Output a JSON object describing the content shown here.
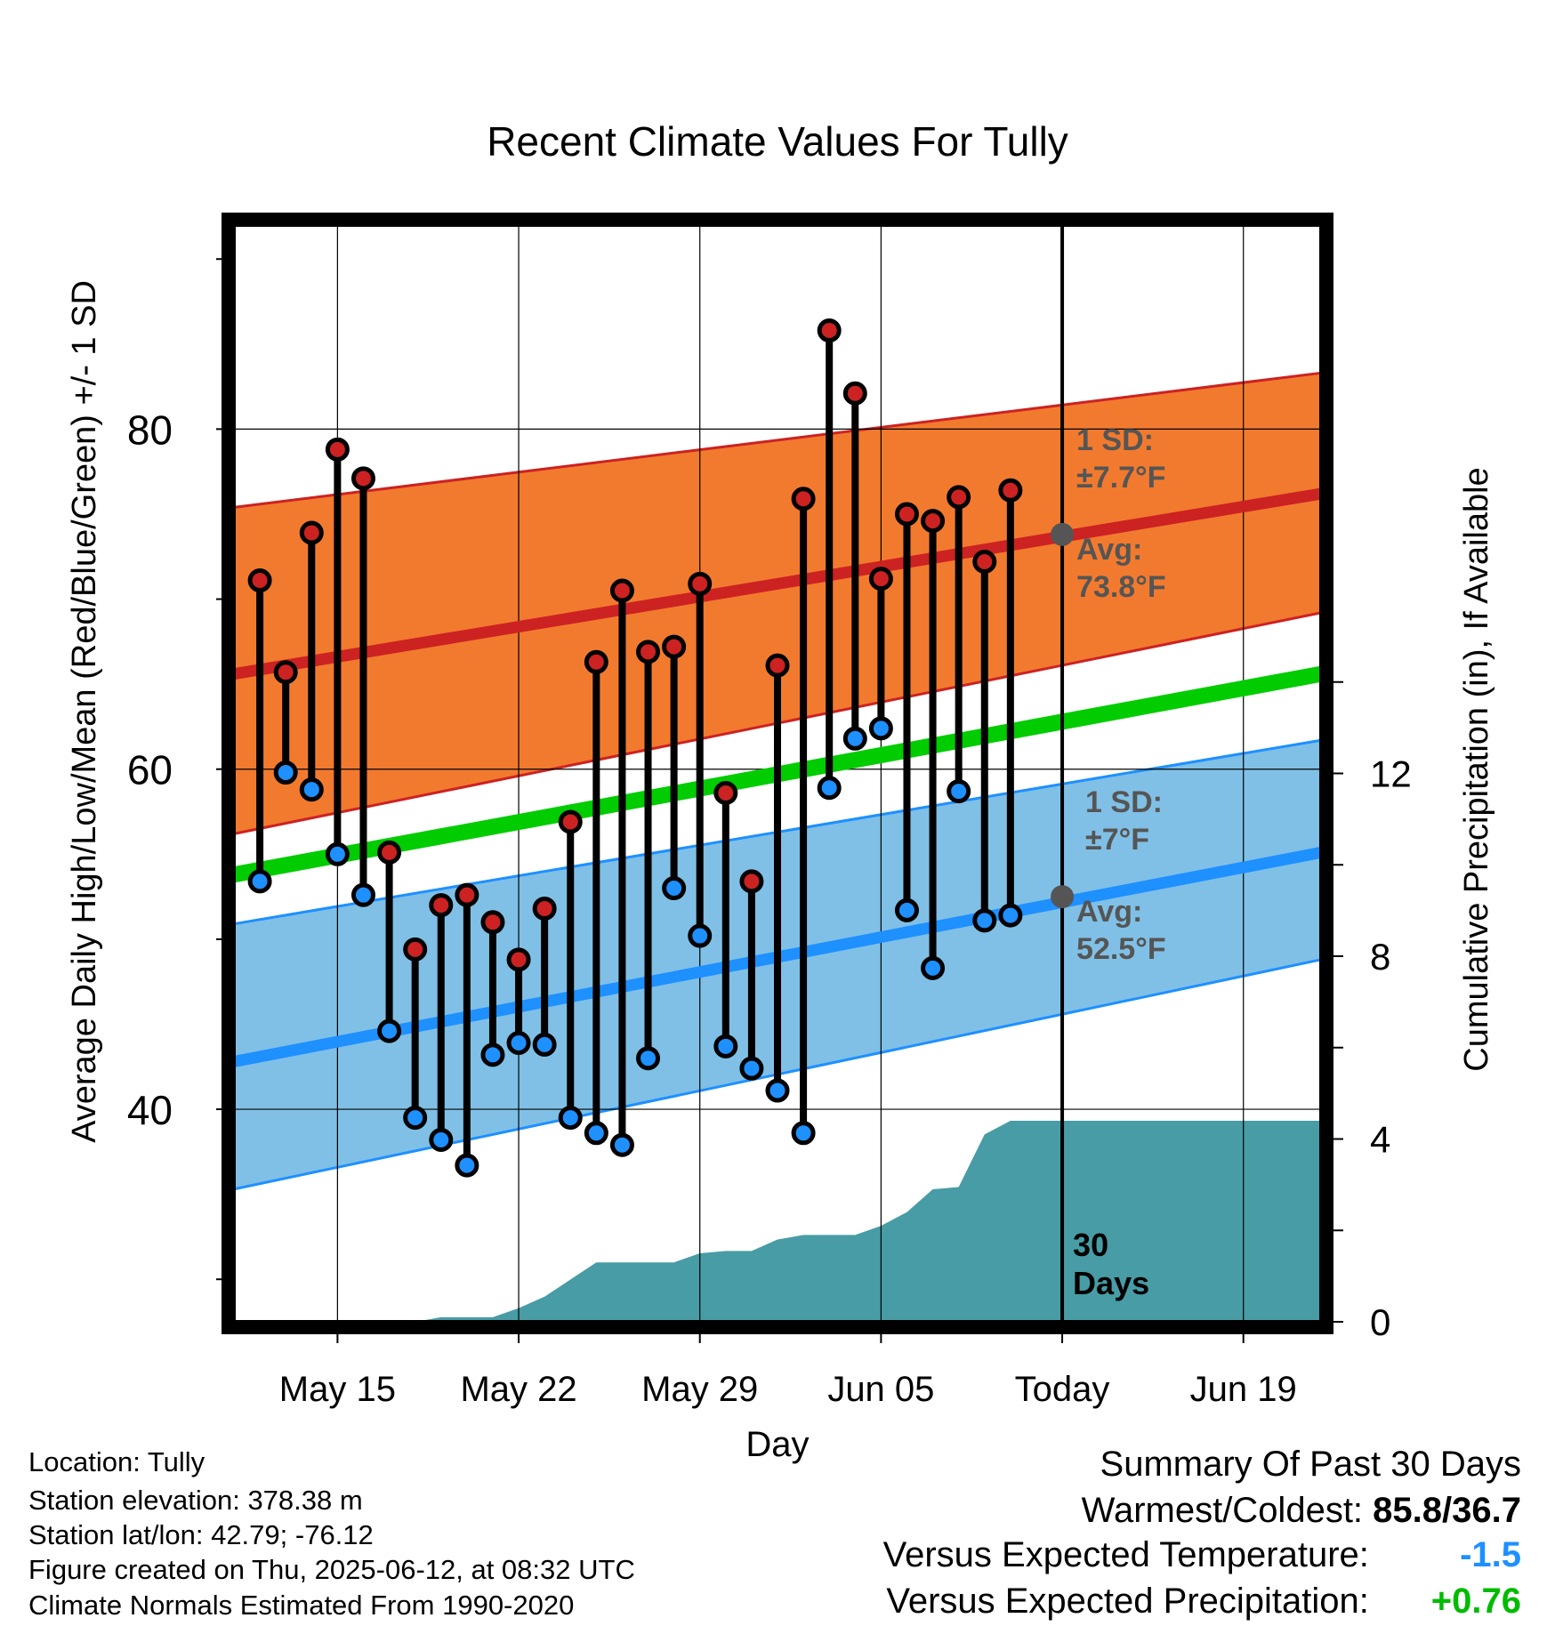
{
  "chart_data": {
    "type": "line",
    "title": "Recent Climate Values For Tully",
    "xlabel": "Day",
    "ylabel": "Average Daily High/Low/Mean (Red/Blue/Green) +/- 1 SD",
    "y2label": "Cumulative Precipitation (in), If Available",
    "ylim": [
      27.5,
      92
    ],
    "y_ticks": [
      40,
      60,
      80
    ],
    "y2lim": [
      0,
      24
    ],
    "y2_ticks": [
      0,
      4,
      8,
      12
    ],
    "x_range": [
      "2025-05-11",
      "2025-06-22"
    ],
    "x_ticks": [
      {
        "date": "2025-05-15",
        "label": "May 15"
      },
      {
        "date": "2025-05-22",
        "label": "May 22"
      },
      {
        "date": "2025-05-29",
        "label": "May 29"
      },
      {
        "date": "2025-06-05",
        "label": "Jun 05"
      },
      {
        "date": "2025-06-12",
        "label": "Today"
      },
      {
        "date": "2025-06-19",
        "label": "Jun 19"
      }
    ],
    "today": "2025-06-12",
    "today_label": "30 Days",
    "normals": {
      "dates": [
        "2025-05-11",
        "2025-06-22"
      ],
      "high_mean": [
        65.6,
        76.2
      ],
      "high_upper": [
        75.4,
        83.3
      ],
      "high_lower": [
        56.2,
        69.2
      ],
      "low_mean": [
        42.8,
        55.1
      ],
      "low_upper": [
        50.9,
        61.7
      ],
      "low_lower": [
        35.3,
        48.8
      ],
      "mean": [
        53.8,
        65.6
      ]
    },
    "daily": {
      "dates": [
        "2025-05-12",
        "2025-05-13",
        "2025-05-14",
        "2025-05-15",
        "2025-05-16",
        "2025-05-17",
        "2025-05-18",
        "2025-05-19",
        "2025-05-20",
        "2025-05-21",
        "2025-05-22",
        "2025-05-23",
        "2025-05-24",
        "2025-05-25",
        "2025-05-26",
        "2025-05-27",
        "2025-05-28",
        "2025-05-29",
        "2025-05-30",
        "2025-05-31",
        "2025-06-01",
        "2025-06-02",
        "2025-06-03",
        "2025-06-04",
        "2025-06-05",
        "2025-06-06",
        "2025-06-07",
        "2025-06-08",
        "2025-06-09",
        "2025-06-10",
        "2025-06-11"
      ],
      "highs": [
        71.1,
        65.7,
        73.9,
        78.8,
        77.1,
        55.1,
        49.4,
        52.0,
        52.6,
        51.0,
        48.8,
        51.8,
        56.9,
        66.3,
        70.5,
        66.9,
        67.2,
        70.9,
        58.6,
        53.4,
        66.1,
        75.9,
        85.8,
        82.1,
        71.2,
        75.0,
        74.6,
        76.0,
        72.2,
        76.4,
        null
      ],
      "lows": [
        53.4,
        59.8,
        58.8,
        55.0,
        52.6,
        44.6,
        39.5,
        38.2,
        36.7,
        43.2,
        43.9,
        43.8,
        39.5,
        38.6,
        37.9,
        43.0,
        53.0,
        50.2,
        43.7,
        42.4,
        41.1,
        38.6,
        58.9,
        61.8,
        62.4,
        51.7,
        48.3,
        58.7,
        51.1,
        51.4,
        null
      ]
    },
    "precip": {
      "dates": [
        "2025-05-13",
        "2025-05-18",
        "2025-05-19",
        "2025-05-20",
        "2025-05-21",
        "2025-05-22",
        "2025-05-23",
        "2025-05-25",
        "2025-05-26",
        "2025-05-27",
        "2025-05-28",
        "2025-05-29",
        "2025-05-30",
        "2025-05-31",
        "2025-06-01",
        "2025-06-02",
        "2025-06-03",
        "2025-06-04",
        "2025-06-05",
        "2025-06-06",
        "2025-06-07",
        "2025-06-08",
        "2025-06-09",
        "2025-06-10",
        "2025-06-11",
        "2025-06-12",
        "2025-06-22"
      ],
      "cumulative": [
        0.0,
        0.0,
        0.1,
        0.1,
        0.1,
        0.3,
        0.55,
        1.3,
        1.3,
        1.3,
        1.3,
        1.5,
        1.55,
        1.55,
        1.8,
        1.9,
        1.9,
        1.9,
        2.1,
        2.4,
        2.9,
        2.95,
        4.1,
        4.4,
        4.4,
        4.4,
        4.4
      ]
    },
    "annotations": [
      {
        "series": "high",
        "line1": "1 SD:",
        "line2": "±7.7°F",
        "line3": "Avg:",
        "line4": "73.8°F",
        "avg_value": 73.8
      },
      {
        "series": "low",
        "line1": "1 SD:",
        "line2": "±7°F",
        "line3": "Avg:",
        "line4": "52.5°F",
        "avg_value": 52.5
      }
    ],
    "colors": {
      "high_band": "#f27a2e",
      "high_mean": "#cc2222",
      "low_band": "#80c0e6",
      "low_mean": "#1e90ff",
      "mean": "#00cc00",
      "precip": "#479ca5",
      "high_marker": "#cc2222",
      "low_marker": "#1e90ff",
      "annotation": "#555555"
    }
  },
  "footer": {
    "location": "Location: Tully",
    "elevation": "Station elevation: 378.38 m",
    "latlon": "Station lat/lon: 42.79; -76.12",
    "created": "Figure created on Thu, 2025-06-12, at 08:32 UTC",
    "normals": "Climate Normals Estimated From 1990-2020"
  },
  "summary": {
    "title": "Summary Of Past 30 Days",
    "warm_cold_label": "Warmest/Coldest:",
    "warm_cold_value": "85.8/36.7",
    "temp_label": "Versus Expected Temperature:",
    "temp_value": "-1.5",
    "temp_color": "#1e90ff",
    "precip_label": "Versus Expected Precipitation:",
    "precip_value": "+0.76",
    "precip_color": "#00bb00"
  }
}
